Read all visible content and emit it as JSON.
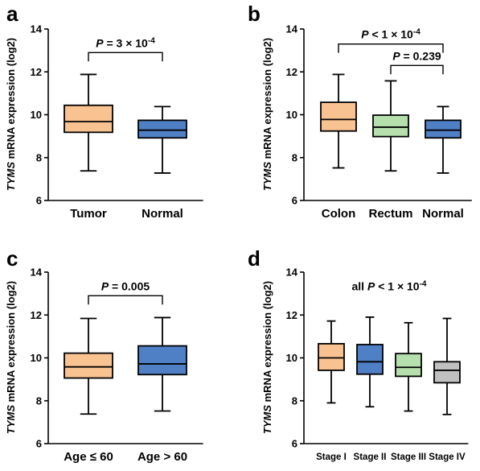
{
  "chart_data": [
    {
      "type": "box",
      "panel_label": "a",
      "ylabel": {
        "italic": "TYMS",
        "rest": " mRNA expression (log2)"
      },
      "ylim": [
        6,
        14
      ],
      "yticks": [
        6,
        8,
        10,
        12,
        14
      ],
      "categories": [
        "Tumor",
        "Normal"
      ],
      "boxes": [
        {
          "category": "Tumor",
          "min": 7.38,
          "q1": 9.18,
          "median": 9.68,
          "q3": 10.44,
          "max": 11.88,
          "color": "#f9c291"
        },
        {
          "category": "Normal",
          "min": 7.28,
          "q1": 8.92,
          "median": 9.28,
          "q3": 9.74,
          "max": 10.38,
          "color": "#4f7fc4"
        }
      ],
      "annotations": [
        {
          "text": "P = 3 × 10-4",
          "parts": [
            {
              "t": "P",
              "i": true
            },
            {
              "t": " = 3 × 10"
            },
            {
              "t": "-4",
              "sup": true
            }
          ],
          "from": 0,
          "to": 1,
          "y": 12.9
        }
      ]
    },
    {
      "type": "box",
      "panel_label": "b",
      "ylabel": {
        "italic": "TYMS",
        "rest": " mRNA expression (log2)"
      },
      "ylim": [
        6,
        14
      ],
      "yticks": [
        6,
        8,
        10,
        12,
        14
      ],
      "categories": [
        "Colon",
        "Rectum",
        "Normal"
      ],
      "boxes": [
        {
          "category": "Colon",
          "min": 7.52,
          "q1": 9.24,
          "median": 9.78,
          "q3": 10.58,
          "max": 11.88,
          "color": "#f9c291"
        },
        {
          "category": "Rectum",
          "min": 7.38,
          "q1": 8.98,
          "median": 9.42,
          "q3": 9.98,
          "max": 11.58,
          "color": "#b5e0ad"
        },
        {
          "category": "Normal",
          "min": 7.28,
          "q1": 8.92,
          "median": 9.28,
          "q3": 9.74,
          "max": 10.38,
          "color": "#4f7fc4"
        }
      ],
      "annotations": [
        {
          "text": "P < 1 × 10-4",
          "parts": [
            {
              "t": "P",
              "i": true
            },
            {
              "t": " < 1 × 10"
            },
            {
              "t": "-4",
              "sup": true
            }
          ],
          "from": 0,
          "to": 2,
          "y": 13.3
        },
        {
          "text": "P = 0.239",
          "parts": [
            {
              "t": "P",
              "i": true
            },
            {
              "t": " = 0.239"
            }
          ],
          "from": 1,
          "to": 2,
          "y": 12.3
        }
      ]
    },
    {
      "type": "box",
      "panel_label": "c",
      "ylabel": {
        "italic": "TYMS",
        "rest": " mRNA expression (log2)"
      },
      "ylim": [
        6,
        14
      ],
      "yticks": [
        6,
        8,
        10,
        12,
        14
      ],
      "categories": [
        "Age ≤ 60",
        "Age > 60"
      ],
      "boxes": [
        {
          "category": "Age ≤ 60",
          "min": 7.38,
          "q1": 9.06,
          "median": 9.58,
          "q3": 10.22,
          "max": 11.84,
          "color": "#f9c291"
        },
        {
          "category": "Age > 60",
          "min": 7.52,
          "q1": 9.22,
          "median": 9.72,
          "q3": 10.56,
          "max": 11.88,
          "color": "#4f7fc4"
        }
      ],
      "annotations": [
        {
          "text": "P = 0.005",
          "parts": [
            {
              "t": "P",
              "i": true
            },
            {
              "t": " = 0.005"
            }
          ],
          "from": 0,
          "to": 1,
          "y": 12.9
        }
      ]
    },
    {
      "type": "box",
      "panel_label": "d",
      "ylabel": {
        "italic": "TYMS",
        "rest": " mRNA expression (log2)"
      },
      "ylim": [
        6,
        14
      ],
      "yticks": [
        6,
        8,
        10,
        12,
        14
      ],
      "categories": [
        "Stage I",
        "Stage II",
        "Stage III",
        "Stage IV"
      ],
      "boxes": [
        {
          "category": "Stage I",
          "min": 7.9,
          "q1": 9.42,
          "median": 10.0,
          "q3": 10.66,
          "max": 11.72,
          "color": "#f9c291"
        },
        {
          "category": "Stage II",
          "min": 7.72,
          "q1": 9.24,
          "median": 9.82,
          "q3": 10.62,
          "max": 11.9,
          "color": "#4f7fc4"
        },
        {
          "category": "Stage III",
          "min": 7.52,
          "q1": 9.14,
          "median": 9.56,
          "q3": 10.2,
          "max": 11.64,
          "color": "#b5e0ad"
        },
        {
          "category": "Stage IV",
          "min": 7.36,
          "q1": 8.84,
          "median": 9.42,
          "q3": 9.82,
          "max": 11.84,
          "color": "#c0c0c0"
        }
      ],
      "annotations": [
        {
          "text": "all P < 1 × 10-4",
          "parts": [
            {
              "t": "all "
            },
            {
              "t": "P",
              "i": true
            },
            {
              "t": " < 1 × 10"
            },
            {
              "t": "-4",
              "sup": true
            }
          ],
          "from": null,
          "to": null,
          "y": 12.9
        }
      ]
    }
  ]
}
